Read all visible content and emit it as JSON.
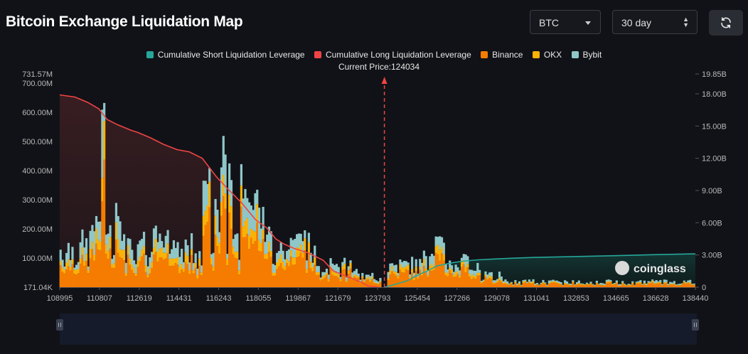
{
  "header": {
    "title": "Bitcoin Exchange Liquidation Map"
  },
  "controls": {
    "coin": "BTC",
    "range": "30 day"
  },
  "watermark": "coinglass",
  "chart_data": {
    "type": "bar",
    "current_price_label": "Current Price:124034",
    "current_price": 124034,
    "legend": [
      {
        "name": "Cumulative Short Liquidation Leverage",
        "color": "#26a69a"
      },
      {
        "name": "Cumulative Long Liquidation Leverage",
        "color": "#ef4444"
      },
      {
        "name": "Binance",
        "color": "#f57c00"
      },
      {
        "name": "OKX",
        "color": "#f9b208"
      },
      {
        "name": "Bybit",
        "color": "#8fc7c9"
      }
    ],
    "x_ticks": [
      "108995",
      "110807",
      "112619",
      "114431",
      "116243",
      "118055",
      "119867",
      "121679",
      "123793",
      "125454",
      "127266",
      "129078",
      "131041",
      "132853",
      "134665",
      "136628",
      "138440"
    ],
    "x_range": [
      108995,
      138440
    ],
    "y_left_ticks": [
      "171.04K",
      "100.00M",
      "200.00M",
      "300.00M",
      "400.00M",
      "500.00M",
      "600.00M",
      "700.00M",
      "731.57M"
    ],
    "y_left_values": [
      0.17104,
      100,
      200,
      300,
      400,
      500,
      600,
      700,
      731.57
    ],
    "y_left_range": [
      0.17104,
      731.57
    ],
    "y_right_ticks": [
      "0",
      "3.00B",
      "6.00B",
      "9.00B",
      "12.00B",
      "15.00B",
      "18.00B",
      "19.85B"
    ],
    "y_right_values": [
      0,
      3,
      6,
      9,
      12,
      15,
      18,
      19.85
    ],
    "y_right_range": [
      0,
      19.85
    ],
    "cumulative_long": {
      "x": [
        108995,
        109700,
        110300,
        110807,
        111200,
        111700,
        112300,
        112619,
        113200,
        113800,
        114431,
        115000,
        115600,
        116243,
        116800,
        117400,
        118055,
        118600,
        119000,
        119400,
        119867,
        120500,
        121200,
        121679,
        122300,
        122900,
        123300,
        123793
      ],
      "y": [
        17.9,
        17.7,
        17.2,
        16.6,
        15.6,
        15.1,
        14.6,
        14.4,
        13.9,
        13.3,
        12.8,
        12.6,
        12.0,
        10.3,
        9.1,
        7.9,
        6.3,
        5.5,
        4.5,
        4.0,
        3.6,
        3.2,
        2.5,
        1.5,
        1.0,
        0.5,
        0.1,
        0
      ]
    },
    "cumulative_short": {
      "x": [
        124034,
        124600,
        125100,
        125454,
        126000,
        126500,
        127266,
        127800,
        128400,
        129078,
        130000,
        131041,
        132853,
        134665,
        136628,
        138440
      ],
      "y": [
        0,
        0.3,
        0.6,
        1.0,
        1.5,
        2.0,
        2.3,
        2.45,
        2.55,
        2.62,
        2.7,
        2.77,
        2.85,
        2.93,
        3.03,
        3.1
      ]
    }
  }
}
